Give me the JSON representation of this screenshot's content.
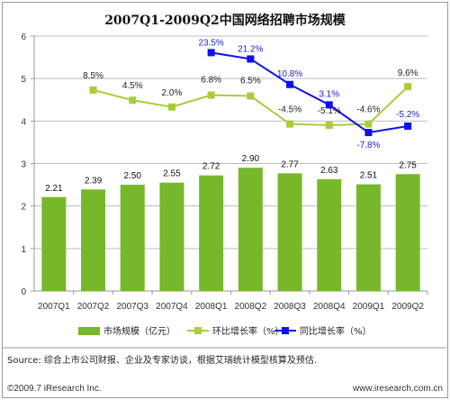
{
  "chart_data": {
    "type": "bar",
    "title": "2007Q1-2009Q2中国网络招聘市场规模",
    "categories": [
      "2007Q1",
      "2007Q2",
      "2007Q3",
      "2007Q4",
      "2008Q1",
      "2008Q2",
      "2008Q3",
      "2008Q4",
      "2009Q1",
      "2009Q2"
    ],
    "ylim": [
      0,
      6
    ],
    "yticks": [
      0,
      1,
      2,
      3,
      4,
      5,
      6
    ],
    "bars": {
      "name": "市场规模（亿元）",
      "values": [
        2.21,
        2.39,
        2.5,
        2.55,
        2.72,
        2.9,
        2.77,
        2.63,
        2.51,
        2.75
      ],
      "labels": [
        "2.21",
        "2.39",
        "2.50",
        "2.55",
        "2.72",
        "2.90",
        "2.77",
        "2.63",
        "2.51",
        "2.75"
      ],
      "color": "#77b82a"
    },
    "qoq": {
      "name": "环比增长率（%）",
      "labels": [
        "",
        "8.5%",
        "4.5%",
        "2.0%",
        "6.8%",
        "6.5%",
        "-4.5%",
        "-5.1%",
        "-4.6%",
        "9.6%"
      ],
      "plot_y": [
        null,
        4.73,
        4.49,
        4.33,
        4.61,
        4.59,
        3.93,
        3.9,
        3.93,
        4.81
      ],
      "color": "#a8cc3c"
    },
    "yoy": {
      "name": "同比增长率（%）",
      "labels": [
        "",
        "",
        "",
        "",
        "23.5%",
        "21.2%",
        "10.8%",
        "3.1%",
        "-7.8%",
        "-5.2%"
      ],
      "plot_y": [
        null,
        null,
        null,
        null,
        5.61,
        5.46,
        4.86,
        4.38,
        3.73,
        3.88
      ],
      "color": "#1010ee"
    }
  },
  "source_text": "Source: 综合上市公司财报、企业及专家访谈，根据艾瑞统计模型核算及预估.",
  "copyright": "©2009.7 iResearch Inc.",
  "website": "www.iresearch.com.cn"
}
